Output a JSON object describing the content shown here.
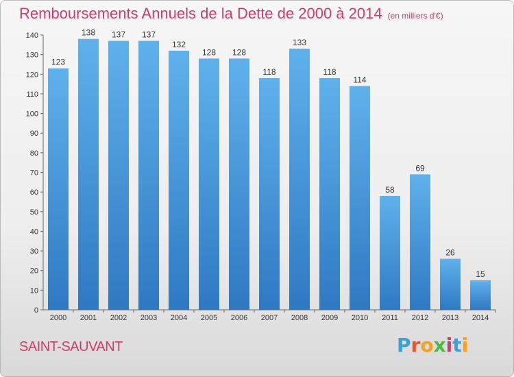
{
  "title": "Remboursements Annuels de la Dette de 2000 à 2014",
  "unit": "(en milliers d'€)",
  "commune": "SAINT-SAUVANT",
  "brand": {
    "letters": [
      "P",
      "r",
      "o",
      "x",
      "i",
      "t",
      "i"
    ],
    "colors": [
      "#3aa0d8",
      "#e9542f",
      "#f7a21b",
      "#4cb848",
      "#d23a6a",
      "#3aa0d8",
      "#f7a21b"
    ]
  },
  "chart_data": {
    "type": "bar",
    "categories": [
      "2000",
      "2001",
      "2002",
      "2003",
      "2004",
      "2005",
      "2006",
      "2007",
      "2008",
      "2009",
      "2010",
      "2011",
      "2012",
      "2013",
      "2014"
    ],
    "values": [
      123,
      138,
      137,
      137,
      132,
      128,
      128,
      118,
      133,
      118,
      114,
      58,
      69,
      26,
      15
    ],
    "yticks": [
      0,
      10,
      20,
      30,
      40,
      50,
      60,
      70,
      80,
      90,
      100,
      110,
      120,
      130,
      140
    ],
    "ylim": [
      0,
      140
    ],
    "bar_color": "#4a9fe0",
    "grid": false
  }
}
